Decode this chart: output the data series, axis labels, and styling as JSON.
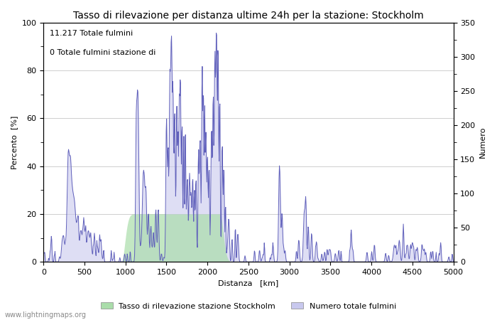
{
  "title": "Tasso di rilevazione per distanza ultime 24h per la stazione: Stockholm",
  "xlabel": "Distanza   [km]",
  "ylabel_left": "Percento  [%]",
  "ylabel_right": "Numero",
  "annotation_line1": "11.217 Totale fulmini",
  "annotation_line2": "0 Totale fulmini stazione di",
  "legend_label1": "Tasso di rilevazione stazione Stockholm",
  "legend_label2": "Numero totale fulmini",
  "legend_color1": "#aaddaa",
  "legend_color2": "#c8c8ee",
  "watermark": "www.lightningmaps.org",
  "xlim": [
    0,
    5000
  ],
  "ylim_left": [
    0,
    100
  ],
  "ylim_right": [
    0,
    350
  ],
  "line_color": "#6060bb",
  "fill_color": "#c8c8ee",
  "green_fill_color": "#aaddaa",
  "background_color": "#ffffff",
  "grid_color": "#bbbbbb",
  "title_fontsize": 10,
  "label_fontsize": 8,
  "tick_fontsize": 8,
  "annotation_fontsize": 8,
  "xticks": [
    0,
    500,
    1000,
    1500,
    2000,
    2500,
    3000,
    3500,
    4000,
    4500,
    5000
  ],
  "yticks_left": [
    0,
    20,
    40,
    60,
    80,
    100
  ],
  "yticks_right": [
    0,
    50,
    100,
    150,
    200,
    250,
    300,
    350
  ]
}
